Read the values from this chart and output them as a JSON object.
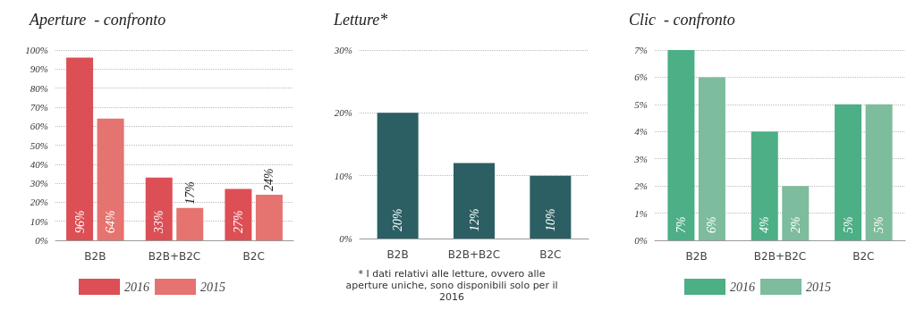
{
  "chart_data": [
    {
      "type": "bar",
      "title": "Aperture  - confronto",
      "categories": [
        "B2B",
        "B2B+B2C",
        "B2C"
      ],
      "series": [
        {
          "name": "2016",
          "color": "#dc4f55",
          "values": [
            96,
            33,
            27
          ],
          "value_labels": [
            "96%",
            "33%",
            "27%"
          ]
        },
        {
          "name": "2015",
          "color": "#e5736f",
          "values": [
            64,
            17,
            24
          ],
          "value_labels": [
            "64%",
            "17%",
            "24%"
          ]
        }
      ],
      "ylim": [
        0,
        100
      ],
      "yticks": [
        {
          "value": 0,
          "label": "0%"
        },
        {
          "value": 10,
          "label": "10%"
        },
        {
          "value": 20,
          "label": "20%"
        },
        {
          "value": 30,
          "label": "30%"
        },
        {
          "value": 40,
          "label": "40%"
        },
        {
          "value": 50,
          "label": "50%"
        },
        {
          "value": 60,
          "label": "60%"
        },
        {
          "value": 70,
          "label": "70%"
        },
        {
          "value": 80,
          "label": "80%"
        },
        {
          "value": 90,
          "label": "90%"
        },
        {
          "value": 100,
          "label": "100%"
        }
      ],
      "grid": "y",
      "legend": "bottom"
    },
    {
      "type": "bar",
      "title": "Letture*",
      "categories": [
        "B2B",
        "B2B+B2C",
        "B2C"
      ],
      "series": [
        {
          "color": "#2b5f63",
          "values": [
            20,
            12,
            10
          ],
          "value_labels": [
            "20%",
            "12%",
            "10%"
          ]
        }
      ],
      "ylim": [
        0,
        30
      ],
      "yticks": [
        {
          "value": 0,
          "label": "0%"
        },
        {
          "value": 10,
          "label": "10%"
        },
        {
          "value": 20,
          "label": "20%"
        },
        {
          "value": 30,
          "label": "30%"
        }
      ],
      "grid": "y",
      "annotations": [
        "* I dati relativi alle letture, ovvero alle aperture uniche, sono disponibili solo per il 2016"
      ]
    },
    {
      "type": "bar",
      "title": "Clic  - confronto",
      "categories": [
        "B2B",
        "B2B+B2C",
        "B2C"
      ],
      "series": [
        {
          "name": "2016",
          "color": "#4caf85",
          "values": [
            7,
            4,
            5
          ],
          "value_labels": [
            "7%",
            "4%",
            "5%"
          ]
        },
        {
          "name": "2015",
          "color": "#7dbc9c",
          "values": [
            6,
            2,
            5
          ],
          "value_labels": [
            "6%",
            "2%",
            "5%"
          ]
        }
      ],
      "ylim": [
        0,
        7
      ],
      "yticks": [
        {
          "value": 0,
          "label": "0%"
        },
        {
          "value": 1,
          "label": "1%"
        },
        {
          "value": 2,
          "label": "2%"
        },
        {
          "value": 3,
          "label": "3%"
        },
        {
          "value": 4,
          "label": "4%"
        },
        {
          "value": 5,
          "label": "5%"
        },
        {
          "value": 6,
          "label": "6%"
        },
        {
          "value": 7,
          "label": "7%"
        }
      ],
      "grid": "y",
      "legend": "bottom"
    }
  ]
}
